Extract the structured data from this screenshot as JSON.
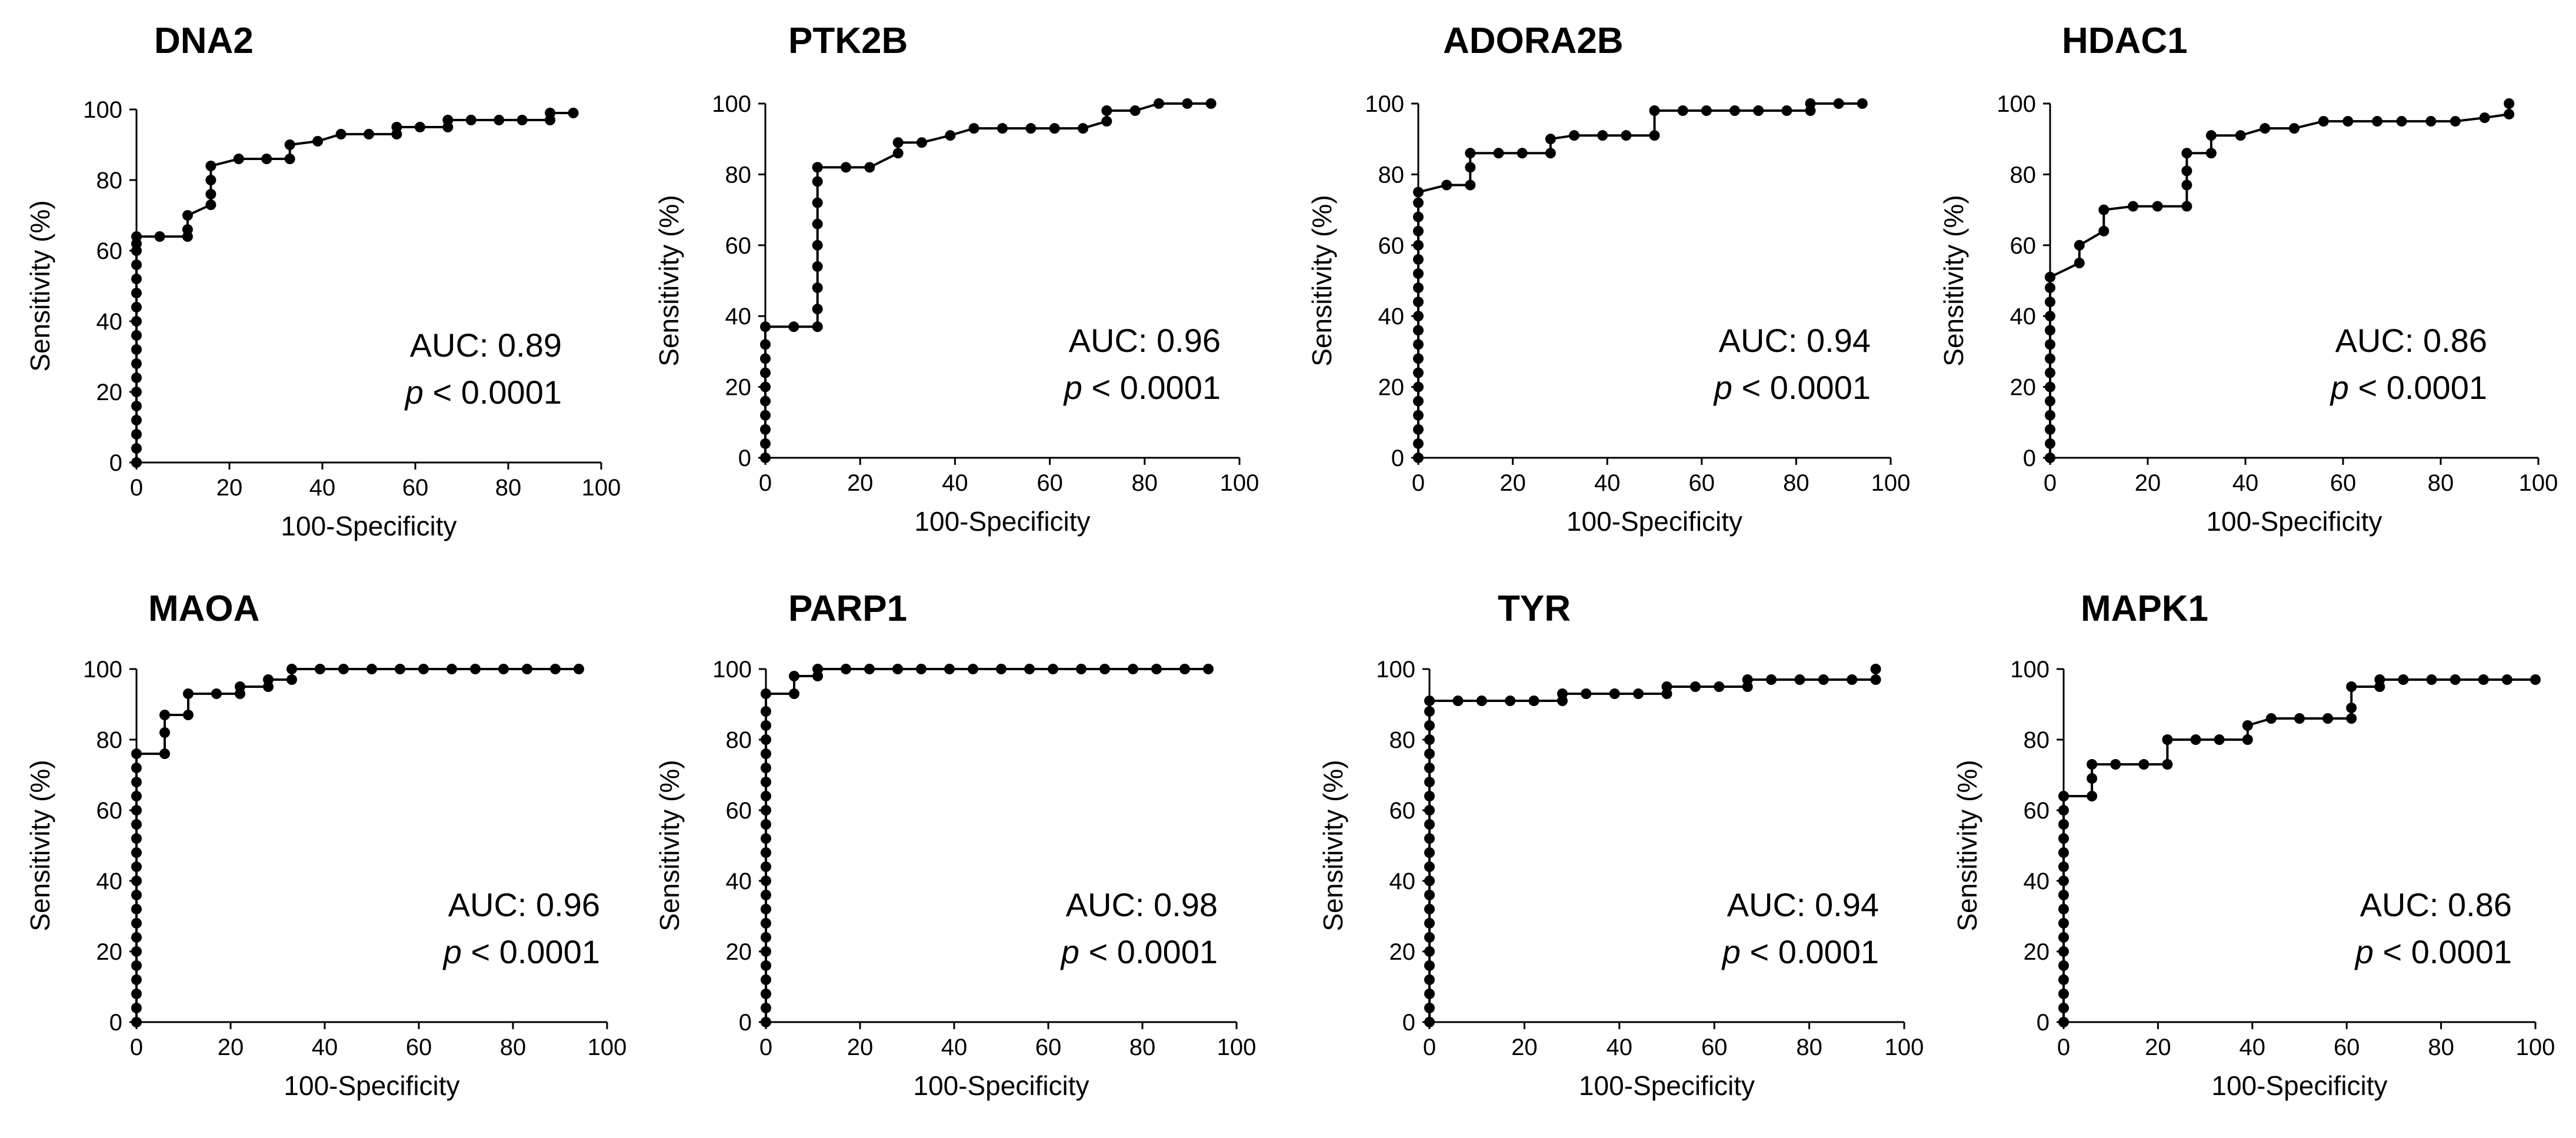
{
  "chart_data": [
    {
      "type": "line",
      "title": "DNA2",
      "xlabel": "100-Specificity",
      "ylabel": "Sensitivity (%)",
      "xlim": [
        0,
        100
      ],
      "ylim": [
        0,
        100
      ],
      "xticks": [
        "0",
        "20",
        "40",
        "60",
        "80",
        "100"
      ],
      "yticks": [
        "0",
        "20",
        "40",
        "60",
        "80",
        "100"
      ],
      "auc_text": "AUC: 0.89",
      "p_label": "p",
      "p_text": " < 0.0001",
      "x": [
        0,
        0,
        0,
        0,
        0,
        0,
        0,
        0,
        0,
        0,
        0,
        0,
        0,
        0,
        0,
        0,
        0,
        0,
        5,
        11,
        11,
        11,
        16,
        16,
        16,
        16,
        22,
        28,
        33,
        33,
        39,
        44,
        50,
        56,
        56,
        61,
        67,
        67,
        72,
        78,
        83,
        89,
        89,
        94
      ],
      "y": [
        0,
        4,
        8,
        12,
        16,
        20,
        24,
        28,
        32,
        36,
        40,
        44,
        48,
        52,
        56,
        60,
        62,
        64,
        64,
        64,
        66,
        70,
        73,
        76,
        80,
        84,
        86,
        86,
        86,
        90,
        91,
        93,
        93,
        93,
        95,
        95,
        95,
        97,
        97,
        97,
        97,
        97,
        99,
        99
      ]
    },
    {
      "type": "line",
      "title": "PTK2B",
      "xlabel": "100-Specificity",
      "ylabel": "Sensitivity (%)",
      "xlim": [
        0,
        100
      ],
      "ylim": [
        0,
        100
      ],
      "xticks": [
        "0",
        "20",
        "40",
        "60",
        "80",
        "100"
      ],
      "yticks": [
        "0",
        "20",
        "40",
        "60",
        "80",
        "100"
      ],
      "auc_text": "AUC: 0.96",
      "p_label": "p",
      "p_text": " < 0.0001",
      "x": [
        0,
        0,
        0,
        0,
        0,
        0,
        0,
        0,
        0,
        0,
        6,
        11,
        11,
        11,
        11,
        11,
        11,
        11,
        11,
        11,
        11,
        17,
        22,
        28,
        28,
        33,
        39,
        44,
        50,
        56,
        61,
        67,
        72,
        72,
        78,
        83,
        89,
        94
      ],
      "y": [
        0,
        4,
        8,
        12,
        16,
        20,
        24,
        28,
        32,
        37,
        37,
        37,
        42,
        48,
        54,
        60,
        66,
        72,
        78,
        82,
        82,
        82,
        82,
        86,
        89,
        89,
        91,
        93,
        93,
        93,
        93,
        93,
        95,
        98,
        98,
        100,
        100,
        100
      ]
    },
    {
      "type": "line",
      "title": "ADORA2B",
      "xlabel": "100-Specificity",
      "ylabel": "Sensitivity (%)",
      "xlim": [
        0,
        100
      ],
      "ylim": [
        0,
        100
      ],
      "xticks": [
        "0",
        "20",
        "40",
        "60",
        "80",
        "100"
      ],
      "yticks": [
        "0",
        "20",
        "40",
        "60",
        "80",
        "100"
      ],
      "auc_text": "AUC: 0.94",
      "p_label": "p",
      "p_text": " < 0.0001",
      "x": [
        0,
        0,
        0,
        0,
        0,
        0,
        0,
        0,
        0,
        0,
        0,
        0,
        0,
        0,
        0,
        0,
        0,
        0,
        0,
        0,
        6,
        11,
        11,
        11,
        17,
        22,
        28,
        28,
        33,
        39,
        44,
        50,
        50,
        56,
        61,
        67,
        72,
        78,
        83,
        83,
        89,
        94
      ],
      "y": [
        0,
        4,
        8,
        12,
        16,
        20,
        24,
        28,
        32,
        36,
        40,
        44,
        48,
        52,
        56,
        60,
        64,
        68,
        72,
        75,
        77,
        77,
        82,
        86,
        86,
        86,
        86,
        90,
        91,
        91,
        91,
        91,
        98,
        98,
        98,
        98,
        98,
        98,
        98,
        100,
        100,
        100
      ]
    },
    {
      "type": "line",
      "title": "HDAC1",
      "xlabel": "100-Specificity",
      "ylabel": "Sensitivity (%)",
      "xlim": [
        0,
        100
      ],
      "ylim": [
        0,
        100
      ],
      "xticks": [
        "0",
        "20",
        "40",
        "60",
        "80",
        "100"
      ],
      "yticks": [
        "0",
        "20",
        "40",
        "60",
        "80",
        "100"
      ],
      "auc_text": "AUC: 0.86",
      "p_label": "p",
      "p_text": " < 0.0001",
      "x": [
        0,
        0,
        0,
        0,
        0,
        0,
        0,
        0,
        0,
        0,
        0,
        0,
        0,
        0,
        0,
        6,
        6,
        11,
        11,
        17,
        22,
        28,
        28,
        28,
        28,
        33,
        33,
        39,
        44,
        50,
        56,
        61,
        67,
        72,
        78,
        83,
        89,
        94,
        94
      ],
      "y": [
        0,
        4,
        8,
        12,
        16,
        20,
        24,
        28,
        32,
        36,
        40,
        44,
        48,
        51,
        51,
        55,
        60,
        64,
        70,
        71,
        71,
        71,
        77,
        81,
        86,
        86,
        91,
        91,
        93,
        93,
        95,
        95,
        95,
        95,
        95,
        95,
        96,
        97,
        100
      ]
    },
    {
      "type": "line",
      "title": "MAOA",
      "xlabel": "100-Specificity",
      "ylabel": "Sensitivity (%)",
      "xlim": [
        0,
        100
      ],
      "ylim": [
        0,
        100
      ],
      "xticks": [
        "0",
        "20",
        "40",
        "60",
        "80",
        "100"
      ],
      "yticks": [
        "0",
        "20",
        "40",
        "60",
        "80",
        "100"
      ],
      "auc_text": "AUC: 0.96",
      "p_label": "p",
      "p_text": " < 0.0001",
      "x": [
        0,
        0,
        0,
        0,
        0,
        0,
        0,
        0,
        0,
        0,
        0,
        0,
        0,
        0,
        0,
        0,
        0,
        0,
        0,
        0,
        6,
        6,
        6,
        11,
        11,
        17,
        22,
        22,
        28,
        28,
        33,
        33,
        39,
        44,
        50,
        56,
        61,
        67,
        72,
        78,
        83,
        89,
        94
      ],
      "y": [
        0,
        4,
        8,
        12,
        16,
        20,
        24,
        28,
        32,
        36,
        40,
        44,
        48,
        52,
        56,
        60,
        64,
        68,
        72,
        76,
        76,
        82,
        87,
        87,
        93,
        93,
        93,
        95,
        95,
        97,
        97,
        100,
        100,
        100,
        100,
        100,
        100,
        100,
        100,
        100,
        100,
        100,
        100
      ]
    },
    {
      "type": "line",
      "title": "PARP1",
      "xlabel": "100-Specificity",
      "ylabel": "Sensitivity (%)",
      "xlim": [
        0,
        100
      ],
      "ylim": [
        0,
        100
      ],
      "xticks": [
        "0",
        "20",
        "40",
        "60",
        "80",
        "100"
      ],
      "yticks": [
        "0",
        "20",
        "40",
        "60",
        "80",
        "100"
      ],
      "auc_text": "AUC: 0.98",
      "p_label": "p",
      "p_text": " < 0.0001",
      "x": [
        0,
        0,
        0,
        0,
        0,
        0,
        0,
        0,
        0,
        0,
        0,
        0,
        0,
        0,
        0,
        0,
        0,
        0,
        0,
        0,
        0,
        0,
        0,
        0,
        6,
        6,
        11,
        11,
        17,
        22,
        28,
        33,
        39,
        44,
        50,
        56,
        61,
        67,
        72,
        78,
        83,
        89,
        94
      ],
      "y": [
        0,
        4,
        8,
        12,
        16,
        20,
        24,
        28,
        32,
        36,
        40,
        44,
        48,
        52,
        56,
        60,
        64,
        68,
        72,
        76,
        80,
        84,
        88,
        93,
        93,
        98,
        98,
        100,
        100,
        100,
        100,
        100,
        100,
        100,
        100,
        100,
        100,
        100,
        100,
        100,
        100,
        100,
        100
      ]
    },
    {
      "type": "line",
      "title": "TYR",
      "xlabel": "100-Specificity",
      "ylabel": "Sensitivity (%)",
      "xlim": [
        0,
        100
      ],
      "ylim": [
        0,
        100
      ],
      "xticks": [
        "0",
        "20",
        "40",
        "60",
        "80",
        "100"
      ],
      "yticks": [
        "0",
        "20",
        "40",
        "60",
        "80",
        "100"
      ],
      "auc_text": "AUC: 0.94",
      "p_label": "p",
      "p_text": " < 0.0001",
      "x": [
        0,
        0,
        0,
        0,
        0,
        0,
        0,
        0,
        0,
        0,
        0,
        0,
        0,
        0,
        0,
        0,
        0,
        0,
        0,
        0,
        0,
        0,
        0,
        0,
        6,
        11,
        17,
        22,
        28,
        28,
        33,
        39,
        44,
        50,
        50,
        56,
        61,
        67,
        67,
        72,
        78,
        83,
        89,
        94,
        94
      ],
      "y": [
        0,
        4,
        8,
        12,
        16,
        20,
        24,
        28,
        32,
        36,
        40,
        44,
        48,
        52,
        56,
        60,
        64,
        68,
        72,
        76,
        80,
        84,
        88,
        91,
        91,
        91,
        91,
        91,
        91,
        93,
        93,
        93,
        93,
        93,
        95,
        95,
        95,
        95,
        97,
        97,
        97,
        97,
        97,
        97,
        100
      ]
    },
    {
      "type": "line",
      "title": "MAPK1",
      "xlabel": "100-Specificity",
      "ylabel": "Sensitivity (%)",
      "xlim": [
        0,
        100
      ],
      "ylim": [
        0,
        100
      ],
      "xticks": [
        "0",
        "20",
        "40",
        "60",
        "80",
        "100"
      ],
      "yticks": [
        "0",
        "20",
        "40",
        "60",
        "80",
        "100"
      ],
      "auc_text": "AUC: 0.86",
      "p_label": "p",
      "p_text": " < 0.0001",
      "x": [
        0,
        0,
        0,
        0,
        0,
        0,
        0,
        0,
        0,
        0,
        0,
        0,
        0,
        0,
        0,
        0,
        0,
        0,
        6,
        6,
        6,
        11,
        17,
        22,
        22,
        28,
        33,
        39,
        39,
        44,
        50,
        56,
        61,
        61,
        61,
        67,
        67,
        72,
        78,
        83,
        89,
        94,
        100
      ],
      "y": [
        0,
        4,
        8,
        12,
        16,
        20,
        24,
        28,
        32,
        36,
        40,
        44,
        48,
        52,
        56,
        60,
        64,
        64,
        64,
        69,
        73,
        73,
        73,
        73,
        80,
        80,
        80,
        80,
        84,
        86,
        86,
        86,
        86,
        89,
        95,
        95,
        97,
        97,
        97,
        97,
        97,
        97,
        97
      ]
    }
  ]
}
